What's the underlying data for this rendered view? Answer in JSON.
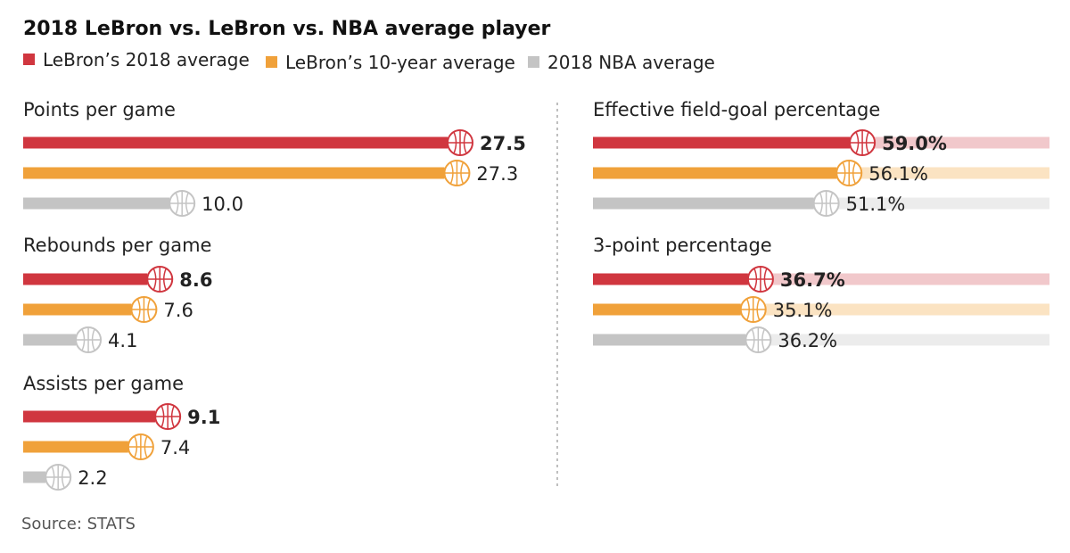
{
  "chart_data": {
    "type": "bar",
    "title": "2018 LeBron vs. LeBron vs. NBA average player",
    "legend": [
      {
        "name": "LeBron’s 2018 average",
        "color": "#d0363f"
      },
      {
        "name": "LeBron’s 10-year average",
        "color": "#f0a13a"
      },
      {
        "name": "2018 NBA average",
        "color": "#c4c4c4"
      }
    ],
    "colors": {
      "series": [
        "#d0363f",
        "#f0a13a",
        "#c4c4c4"
      ],
      "tracks": [
        "#f1c8cb",
        "#fbe3c2",
        "#ececec"
      ],
      "divider": "#aaaaaa"
    },
    "panels": [
      {
        "title": "Points per game",
        "max": 27.5,
        "track": false,
        "values": [
          27.5,
          27.3,
          10.0
        ],
        "labels": [
          "27.5",
          "27.3",
          "10.0"
        ]
      },
      {
        "title": "Rebounds per game",
        "max": 27.5,
        "track": false,
        "values": [
          8.6,
          7.6,
          4.1
        ],
        "labels": [
          "8.6",
          "7.6",
          "4.1"
        ]
      },
      {
        "title": "Assists per game",
        "max": 27.5,
        "track": false,
        "values": [
          9.1,
          7.4,
          2.2
        ],
        "labels": [
          "9.1",
          "7.4",
          "2.2"
        ]
      },
      {
        "title": "Effective field-goal percentage",
        "max": 100,
        "track": true,
        "values": [
          59.0,
          56.1,
          51.1
        ],
        "labels": [
          "59.0%",
          "56.1%",
          "51.1%"
        ]
      },
      {
        "title": "3-point percentage",
        "max": 100,
        "track": true,
        "values": [
          36.7,
          35.1,
          36.2
        ],
        "labels": [
          "36.7%",
          "35.1%",
          "36.2%"
        ]
      }
    ],
    "source": "Source: STATS",
    "icon": "basketball-icon"
  }
}
